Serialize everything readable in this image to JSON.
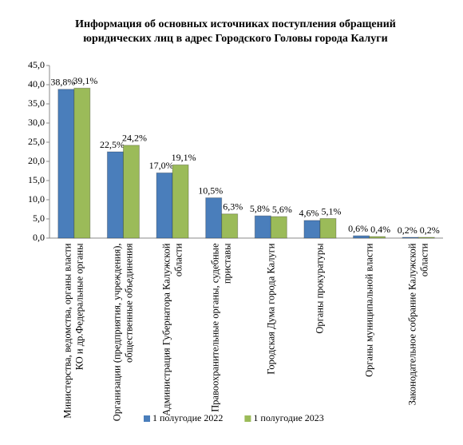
{
  "chart_data": {
    "type": "bar",
    "title": "Информация об основных источниках поступления обращений юридических лиц в адрес Городского Головы города Калуги",
    "categories": [
      "Министерства, ведомства, органы власти КО и др.Федеральные органы",
      "Организации (предприятия, учреждения), общественные объединения",
      "Администрация Губернатора Калужской области",
      "Правоохранительные органы, судебные приставы",
      "Городская Дума города Калуги",
      "Органы прокуратуры",
      "Органы муниципальной власти",
      "Законодательное собрание Калужской области"
    ],
    "series": [
      {
        "name": "1 полугодие 2022",
        "color": "#4a7ebb",
        "values": [
          38.8,
          22.5,
          17.0,
          10.5,
          5.8,
          4.6,
          0.6,
          0.2
        ],
        "value_labels": [
          "38,8%",
          "22,5%",
          "17,0%",
          "10,5%",
          "5,8%",
          "4,6%",
          "0,6%",
          "0,2%"
        ]
      },
      {
        "name": "1 полугодие 2023",
        "color": "#9bbb59",
        "values": [
          39.1,
          24.2,
          19.1,
          6.3,
          5.6,
          5.1,
          0.4,
          0.2
        ],
        "value_labels": [
          "39,1%",
          "24,2%",
          "19,1%",
          "6,3%",
          "5,6%",
          "5,1%",
          "0,4%",
          "0,2%"
        ]
      }
    ],
    "ylim": [
      0,
      45
    ],
    "yticks": [
      {
        "value": 0,
        "label": "0,0"
      },
      {
        "value": 5,
        "label": "5,0"
      },
      {
        "value": 10,
        "label": "10,0"
      },
      {
        "value": 15,
        "label": "15,0"
      },
      {
        "value": 20,
        "label": "20,0"
      },
      {
        "value": 25,
        "label": "25,0"
      },
      {
        "value": 30,
        "label": "30,0"
      },
      {
        "value": 35,
        "label": "35,0"
      },
      {
        "value": 40,
        "label": "40,0"
      },
      {
        "value": 45,
        "label": "45,0"
      }
    ],
    "legend": "bottom"
  }
}
